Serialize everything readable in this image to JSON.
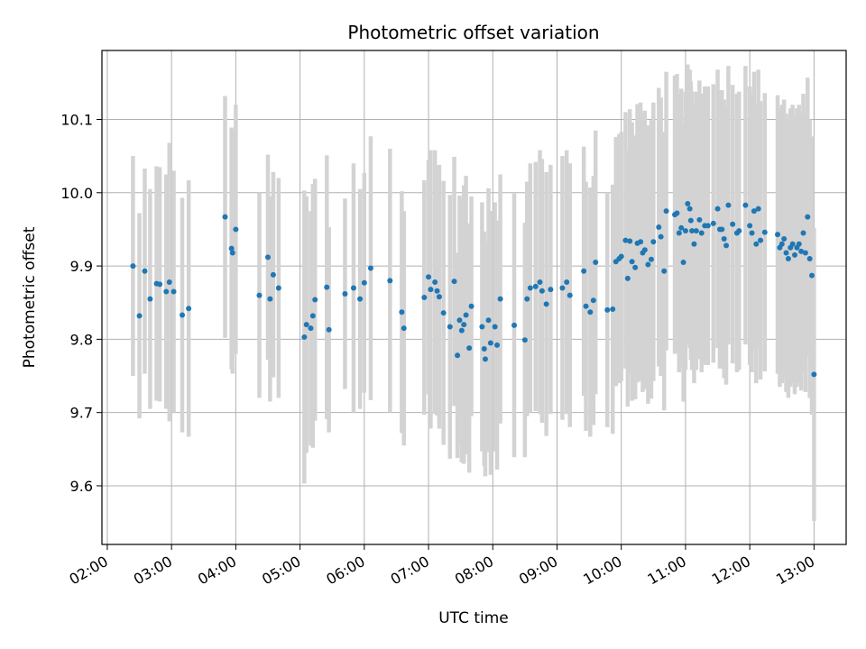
{
  "chart_data": {
    "type": "scatter",
    "title": "Photometric offset variation",
    "xlabel": "UTC time",
    "ylabel": "Photometric offset",
    "x_unit": "hours UTC",
    "xlim": [
      "01:55",
      "13:30"
    ],
    "ylim": [
      9.52,
      10.1941
    ],
    "x_ticks": [
      "02:00",
      "03:00",
      "04:00",
      "05:00",
      "06:00",
      "07:00",
      "08:00",
      "09:00",
      "10:00",
      "11:00",
      "12:00",
      "13:00"
    ],
    "y_ticks": [
      "9.6",
      "9.7",
      "9.8",
      "9.9",
      "10.0",
      "10.1"
    ],
    "grid": true,
    "marker_color": "#1f77b4",
    "errorbar_color": "#d3d3d3",
    "series": [
      {
        "points": [
          [
            "02:24",
            9.9,
            0.15
          ],
          [
            "02:30",
            9.832,
            0.14
          ],
          [
            "02:35",
            9.893,
            0.14
          ],
          [
            "02:40",
            9.855,
            0.15
          ],
          [
            "02:46",
            9.876,
            0.16
          ],
          [
            "02:49",
            9.875,
            0.16
          ],
          [
            "02:55",
            9.865,
            0.16
          ],
          [
            "02:58",
            9.878,
            0.19
          ],
          [
            "03:02",
            9.865,
            0.165
          ],
          [
            "03:10",
            9.833,
            0.16
          ],
          [
            "03:16",
            9.842,
            0.175
          ],
          [
            "03:50",
            9.967,
            0.165
          ],
          [
            "03:56",
            9.924,
            0.165
          ],
          [
            "03:57",
            9.918,
            0.165
          ],
          [
            "04:00",
            9.95,
            0.17
          ],
          [
            "04:22",
            9.86,
            0.14
          ],
          [
            "04:30",
            9.912,
            0.14
          ],
          [
            "04:32",
            9.855,
            0.14
          ],
          [
            "04:35",
            9.888,
            0.14
          ],
          [
            "04:40",
            9.87,
            0.15
          ],
          [
            "05:04",
            9.803,
            0.2
          ],
          [
            "05:06",
            9.82,
            0.175
          ],
          [
            "05:10",
            9.815,
            0.16
          ],
          [
            "05:12",
            9.832,
            0.18
          ],
          [
            "05:14",
            9.854,
            0.165
          ],
          [
            "05:25",
            9.871,
            0.18
          ],
          [
            "05:27",
            9.813,
            0.14
          ],
          [
            "05:42",
            9.862,
            0.13
          ],
          [
            "05:50",
            9.87,
            0.17
          ],
          [
            "05:56",
            9.855,
            0.15
          ],
          [
            "06:00",
            9.877,
            0.15
          ],
          [
            "06:06",
            9.897,
            0.18
          ],
          [
            "06:24",
            9.88,
            0.18
          ],
          [
            "06:35",
            9.837,
            0.165
          ],
          [
            "06:37",
            9.815,
            0.16
          ],
          [
            "06:56",
            9.857,
            0.16
          ],
          [
            "07:00",
            9.885,
            0.16
          ],
          [
            "07:02",
            9.868,
            0.19
          ],
          [
            "07:06",
            9.878,
            0.18
          ],
          [
            "07:08",
            9.866,
            0.17
          ],
          [
            "07:10",
            9.858,
            0.18
          ],
          [
            "07:14",
            9.836,
            0.18
          ],
          [
            "07:20",
            9.817,
            0.18
          ],
          [
            "07:24",
            9.879,
            0.17
          ],
          [
            "07:27",
            9.778,
            0.14
          ],
          [
            "07:29",
            9.826,
            0.17
          ],
          [
            "07:31",
            9.812,
            0.18
          ],
          [
            "07:33",
            9.82,
            0.19
          ],
          [
            "07:35",
            9.833,
            0.19
          ],
          [
            "07:38",
            9.788,
            0.17
          ],
          [
            "07:40",
            9.845,
            0.15
          ],
          [
            "07:50",
            9.817,
            0.17
          ],
          [
            "07:52",
            9.787,
            0.16
          ],
          [
            "07:53",
            9.773,
            0.16
          ],
          [
            "07:56",
            9.826,
            0.18
          ],
          [
            "07:58",
            9.795,
            0.18
          ],
          [
            "08:02",
            9.817,
            0.17
          ],
          [
            "08:04",
            9.792,
            0.17
          ],
          [
            "08:07",
            9.855,
            0.17
          ],
          [
            "08:20",
            9.819,
            0.18
          ],
          [
            "08:30",
            9.799,
            0.16
          ],
          [
            "08:32",
            9.855,
            0.16
          ],
          [
            "08:35",
            9.87,
            0.17
          ],
          [
            "08:40",
            9.872,
            0.17
          ],
          [
            "08:44",
            9.878,
            0.18
          ],
          [
            "08:46",
            9.866,
            0.18
          ],
          [
            "08:50",
            9.848,
            0.18
          ],
          [
            "08:54",
            9.868,
            0.17
          ],
          [
            "09:05",
            9.87,
            0.18
          ],
          [
            "09:09",
            9.878,
            0.18
          ],
          [
            "09:12",
            9.86,
            0.18
          ],
          [
            "09:25",
            9.893,
            0.17
          ],
          [
            "09:27",
            9.845,
            0.17
          ],
          [
            "09:31",
            9.837,
            0.17
          ],
          [
            "09:34",
            9.853,
            0.17
          ],
          [
            "09:36",
            9.905,
            0.18
          ],
          [
            "09:47",
            9.84,
            0.16
          ],
          [
            "09:52",
            9.841,
            0.17
          ],
          [
            "09:55",
            9.906,
            0.17
          ],
          [
            "09:58",
            9.91,
            0.17
          ],
          [
            "10:00",
            9.913,
            0.17
          ],
          [
            "10:04",
            9.935,
            0.175
          ],
          [
            "10:06",
            9.883,
            0.175
          ],
          [
            "10:08",
            9.934,
            0.18
          ],
          [
            "10:10",
            9.906,
            0.19
          ],
          [
            "10:13",
            9.898,
            0.18
          ],
          [
            "10:15",
            9.931,
            0.19
          ],
          [
            "10:18",
            9.933,
            0.19
          ],
          [
            "10:20",
            9.918,
            0.19
          ],
          [
            "10:22",
            9.922,
            0.19
          ],
          [
            "10:25",
            9.902,
            0.19
          ],
          [
            "10:28",
            9.909,
            0.19
          ],
          [
            "10:30",
            9.933,
            0.19
          ],
          [
            "10:35",
            9.953,
            0.19
          ],
          [
            "10:37",
            9.94,
            0.19
          ],
          [
            "10:40",
            9.893,
            0.19
          ],
          [
            "10:42",
            9.975,
            0.19
          ],
          [
            "10:50",
            9.97,
            0.19
          ],
          [
            "10:52",
            9.972,
            0.19
          ],
          [
            "10:54",
            9.945,
            0.19
          ],
          [
            "10:56",
            9.952,
            0.19
          ],
          [
            "10:58",
            9.905,
            0.19
          ],
          [
            "11:00",
            9.948,
            0.19
          ],
          [
            "11:02",
            9.985,
            0.19
          ],
          [
            "11:04",
            9.978,
            0.19
          ],
          [
            "11:05",
            9.962,
            0.19
          ],
          [
            "11:06",
            9.948,
            0.19
          ],
          [
            "11:08",
            9.93,
            0.19
          ],
          [
            "11:10",
            9.948,
            0.19
          ],
          [
            "11:13",
            9.963,
            0.19
          ],
          [
            "11:15",
            9.945,
            0.19
          ],
          [
            "11:18",
            9.955,
            0.19
          ],
          [
            "11:21",
            9.955,
            0.19
          ],
          [
            "11:26",
            9.958,
            0.19
          ],
          [
            "11:30",
            9.978,
            0.19
          ],
          [
            "11:32",
            9.95,
            0.19
          ],
          [
            "11:34",
            9.95,
            0.19
          ],
          [
            "11:36",
            9.937,
            0.19
          ],
          [
            "11:38",
            9.928,
            0.19
          ],
          [
            "11:40",
            9.983,
            0.19
          ],
          [
            "11:44",
            9.957,
            0.19
          ],
          [
            "11:48",
            9.945,
            0.19
          ],
          [
            "11:50",
            9.948,
            0.19
          ],
          [
            "11:56",
            9.983,
            0.19
          ],
          [
            "12:00",
            9.955,
            0.19
          ],
          [
            "12:02",
            9.945,
            0.19
          ],
          [
            "12:04",
            9.975,
            0.19
          ],
          [
            "12:06",
            9.93,
            0.19
          ],
          [
            "12:08",
            9.978,
            0.19
          ],
          [
            "12:10",
            9.935,
            0.19
          ],
          [
            "12:14",
            9.946,
            0.19
          ],
          [
            "12:26",
            9.943,
            0.19
          ],
          [
            "12:28",
            9.925,
            0.19
          ],
          [
            "12:30",
            9.93,
            0.19
          ],
          [
            "12:32",
            9.937,
            0.19
          ],
          [
            "12:34",
            9.918,
            0.19
          ],
          [
            "12:36",
            9.91,
            0.19
          ],
          [
            "12:38",
            9.925,
            0.19
          ],
          [
            "12:40",
            9.93,
            0.19
          ],
          [
            "12:42",
            9.915,
            0.19
          ],
          [
            "12:44",
            9.925,
            0.19
          ],
          [
            "12:46",
            9.93,
            0.19
          ],
          [
            "12:48",
            9.92,
            0.19
          ],
          [
            "12:50",
            9.945,
            0.19
          ],
          [
            "12:52",
            9.918,
            0.19
          ],
          [
            "12:54",
            9.967,
            0.19
          ],
          [
            "12:56",
            9.91,
            0.19
          ],
          [
            "12:58",
            9.887,
            0.19
          ],
          [
            "13:00",
            9.752,
            0.2
          ]
        ]
      }
    ]
  }
}
